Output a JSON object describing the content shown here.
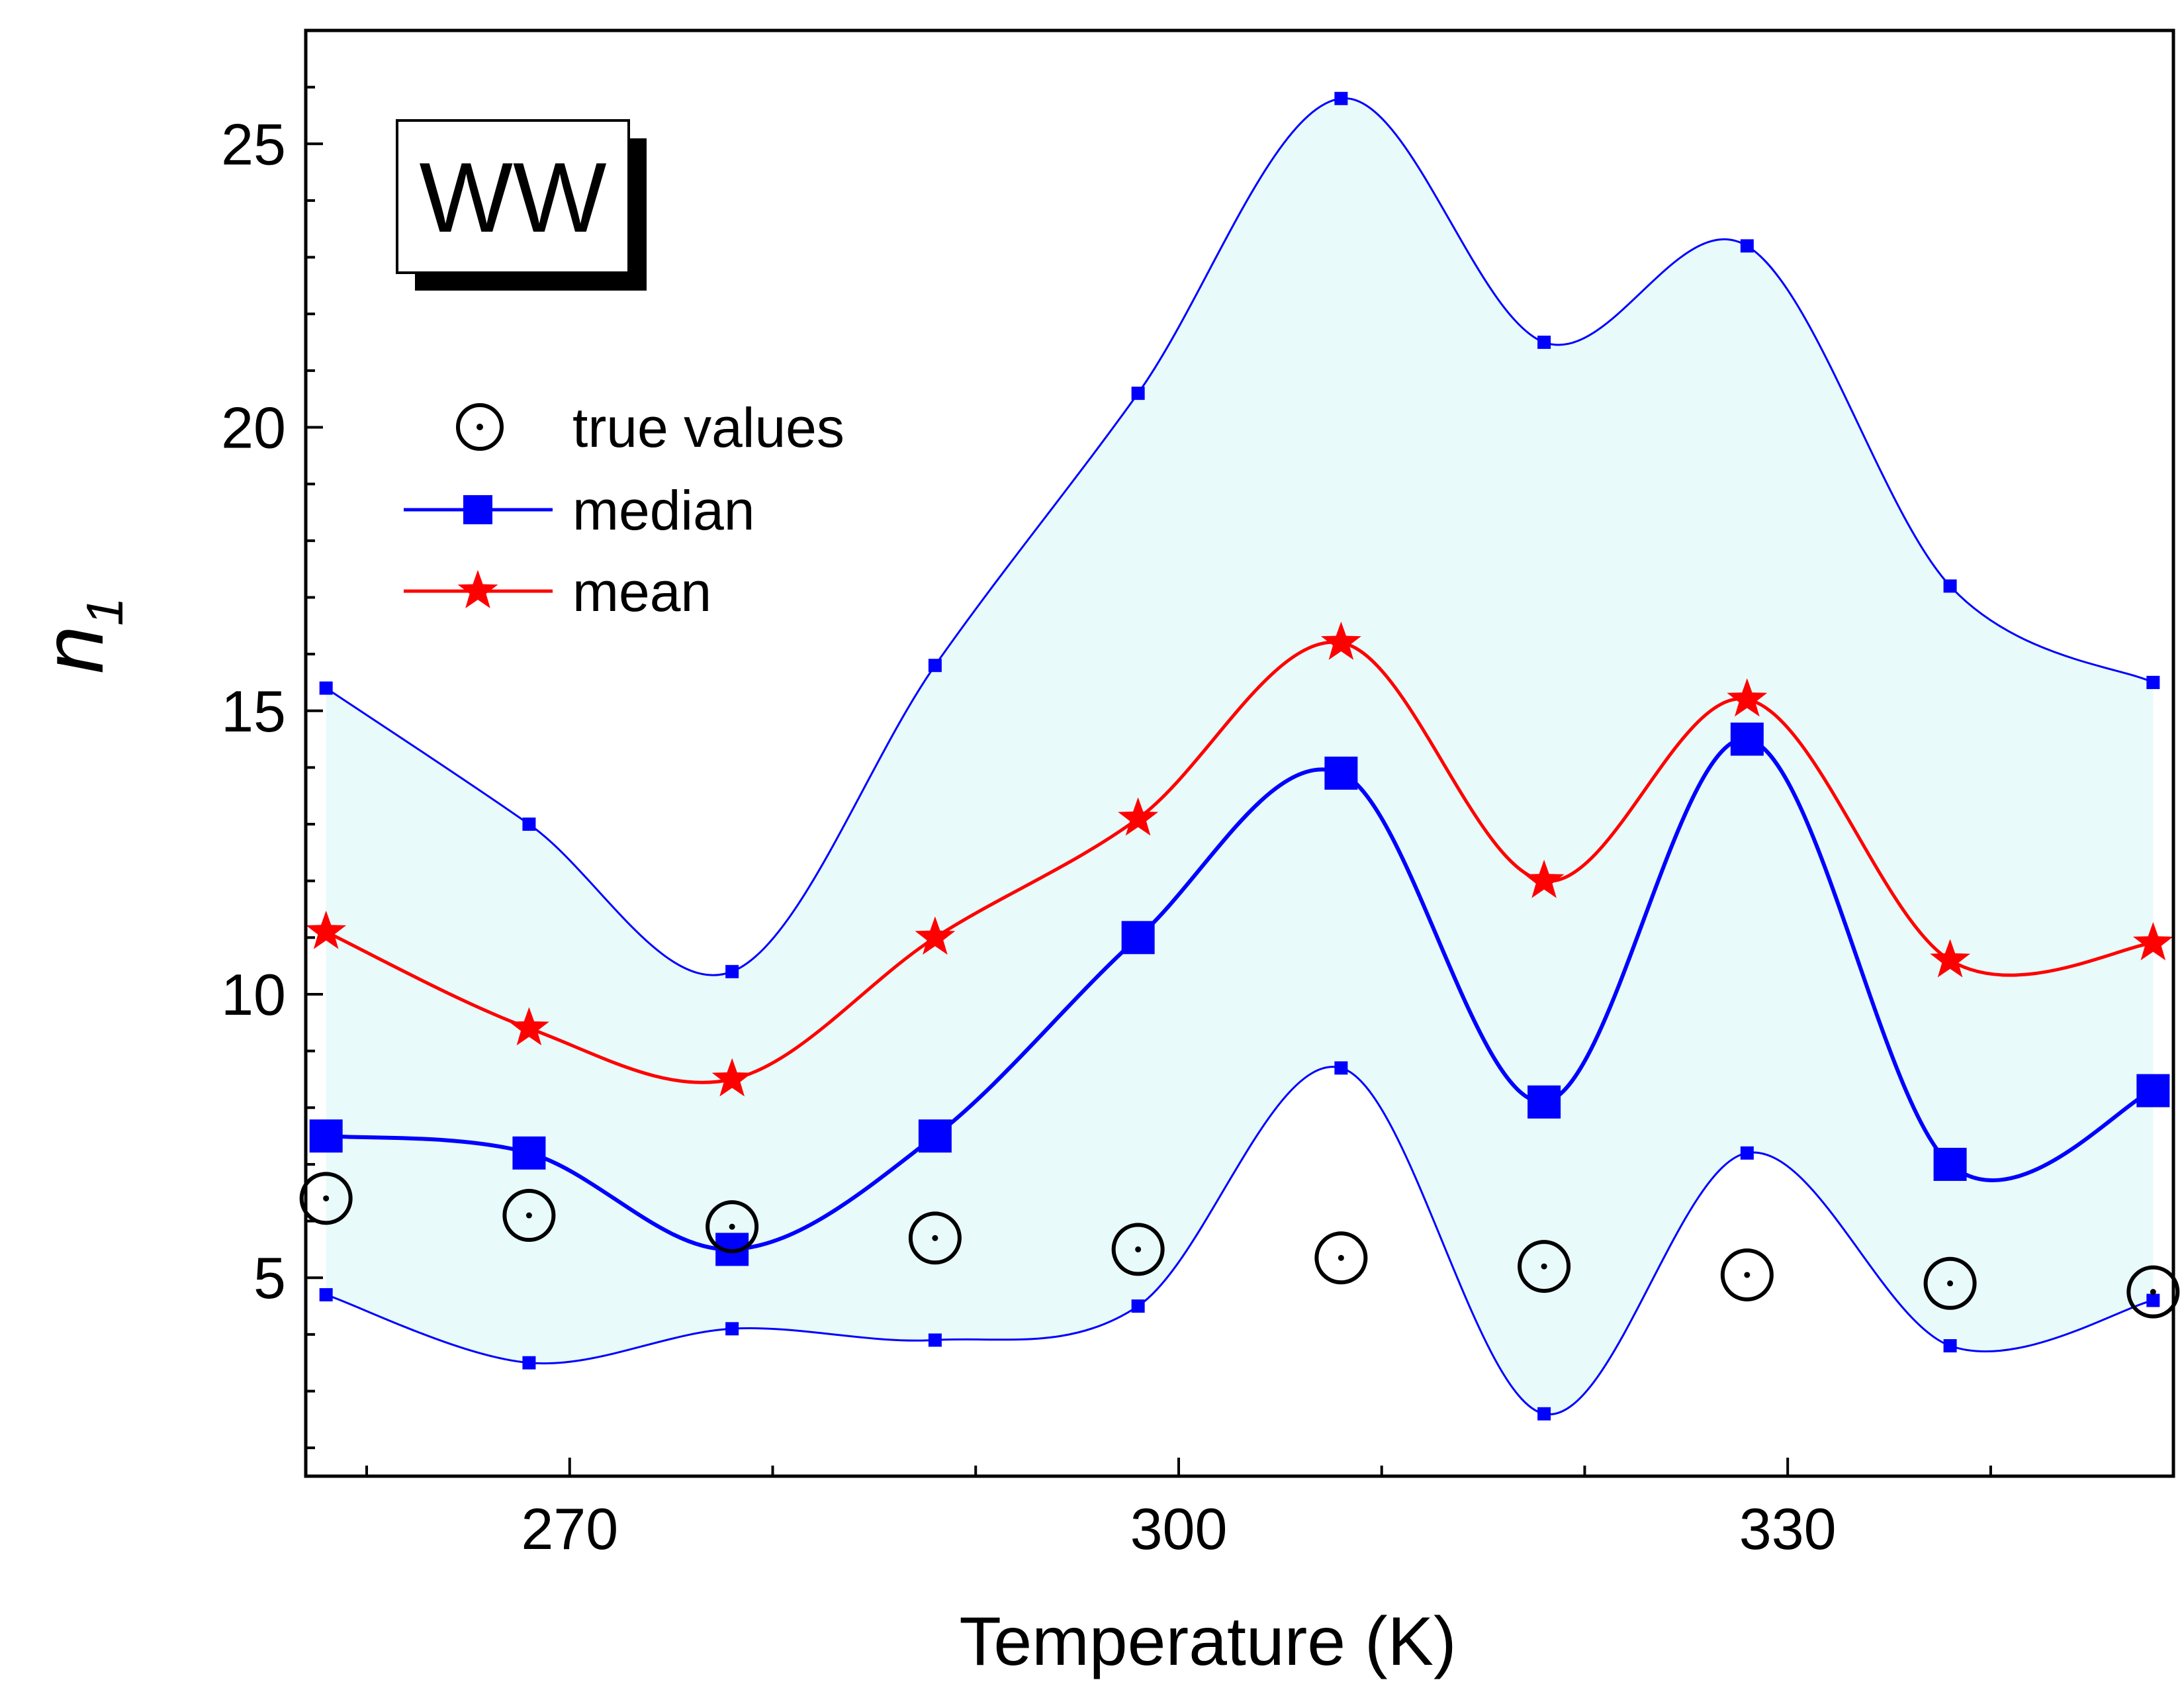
{
  "chart_data": {
    "type": "line",
    "xlabel": "Temperature (K)",
    "ylabel": "n",
    "ylabel_subscript": "1",
    "badge": "WW",
    "x": [
      258,
      268,
      278,
      288,
      298,
      308,
      318,
      328,
      338,
      348
    ],
    "xlim": [
      257,
      349
    ],
    "ylim": [
      1.5,
      27
    ],
    "x_ticks": [
      270,
      300,
      330
    ],
    "y_ticks": [
      5,
      10,
      15,
      20,
      25
    ],
    "grid": false,
    "legend_position": "upper-left",
    "band": {
      "upper": [
        15.4,
        13.0,
        10.4,
        15.8,
        20.6,
        25.8,
        21.5,
        23.2,
        17.2,
        15.5
      ],
      "lower": [
        4.7,
        3.5,
        4.1,
        3.9,
        4.5,
        8.7,
        2.6,
        7.2,
        3.8,
        4.6
      ],
      "fill_color": "#e8fafa",
      "line_color": "#0000ff"
    },
    "series": [
      {
        "name": "true values",
        "marker": "circle-dot",
        "color": "#000000",
        "values": [
          6.4,
          6.1,
          5.9,
          5.7,
          5.5,
          5.35,
          5.2,
          5.05,
          4.9,
          4.75
        ]
      },
      {
        "name": "median",
        "marker": "square",
        "color": "#0000ff",
        "values": [
          7.5,
          7.2,
          5.5,
          7.5,
          11.0,
          13.9,
          8.1,
          14.5,
          7.0,
          8.3
        ]
      },
      {
        "name": "mean",
        "marker": "star",
        "color": "#ff0000",
        "values": [
          11.1,
          9.4,
          8.5,
          11.0,
          13.1,
          16.2,
          12.0,
          15.2,
          10.6,
          10.9
        ]
      }
    ]
  }
}
